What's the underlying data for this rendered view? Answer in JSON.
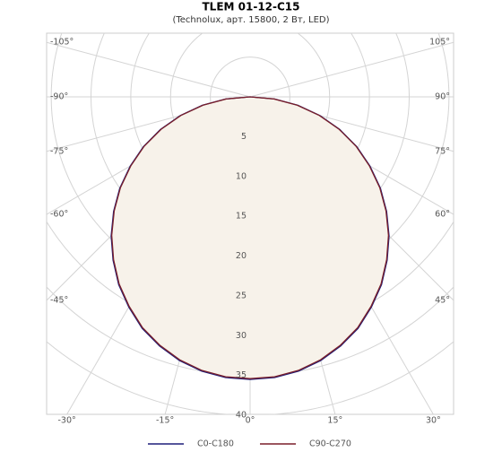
{
  "chart_data": {
    "type": "polar",
    "title": "TLEM 01-12-C15",
    "subtitle": "(Technolux, арт. 15800, 2 Вт, LED)",
    "x": [
      -90,
      -85,
      -80,
      -75,
      -70,
      -65,
      -60,
      -55,
      -50,
      -45,
      -40,
      -35,
      -30,
      -25,
      -20,
      -15,
      -10,
      -5,
      0,
      5,
      10,
      15,
      20,
      25,
      30,
      35,
      40,
      45,
      50,
      55,
      60,
      65,
      70,
      75,
      80,
      85,
      90
    ],
    "series": [
      {
        "name": "C0-C180",
        "color": "#1f1f7a",
        "values": [
          0,
          3.1,
          6.1,
          9.1,
          12.0,
          14.8,
          17.4,
          20.0,
          22.4,
          24.7,
          26.8,
          28.8,
          30.5,
          32.1,
          33.3,
          34.3,
          35.0,
          35.4,
          35.5,
          35.4,
          35.0,
          34.3,
          33.3,
          32.1,
          30.5,
          28.8,
          26.8,
          24.7,
          22.4,
          20.0,
          17.4,
          14.8,
          12.0,
          9.1,
          6.1,
          3.1,
          0
        ]
      },
      {
        "name": "C90-C270",
        "color": "#7a1f2a",
        "values": [
          0,
          3.0,
          6.0,
          9.0,
          11.9,
          14.7,
          17.3,
          19.9,
          22.3,
          24.6,
          26.7,
          28.7,
          30.4,
          32.0,
          33.2,
          34.2,
          34.9,
          35.3,
          35.4,
          35.3,
          34.9,
          34.2,
          33.2,
          32.0,
          30.4,
          28.7,
          26.7,
          24.6,
          22.3,
          19.9,
          17.3,
          14.7,
          11.9,
          9.0,
          6.0,
          3.0,
          0
        ]
      }
    ],
    "fill": "#f7f2ea",
    "rlim": [
      0,
      40
    ],
    "rticks": [
      5,
      10,
      15,
      20,
      25,
      30,
      35,
      40
    ],
    "thetaticks": [
      {
        "value": -105,
        "label": "-105°"
      },
      {
        "value": -90,
        "label": "-90°"
      },
      {
        "value": -75,
        "label": "-75°"
      },
      {
        "value": -60,
        "label": "-60°"
      },
      {
        "value": -45,
        "label": "-45°"
      },
      {
        "value": -30,
        "label": "-30°"
      },
      {
        "value": -15,
        "label": "-15°"
      },
      {
        "value": 0,
        "label": "0°"
      },
      {
        "value": 15,
        "label": "15°"
      },
      {
        "value": 30,
        "label": "30°"
      },
      {
        "value": 45,
        "label": "45°"
      },
      {
        "value": 60,
        "label": "60°"
      },
      {
        "value": 75,
        "label": "75°"
      },
      {
        "value": 90,
        "label": "90°"
      },
      {
        "value": 105,
        "label": "105°"
      }
    ],
    "grid": true
  }
}
